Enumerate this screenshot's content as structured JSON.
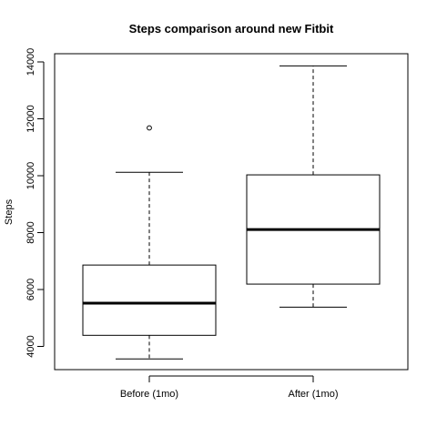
{
  "chart_data": {
    "type": "boxplot",
    "title": "Steps comparison around new Fitbit",
    "xlabel": "",
    "ylabel": "Steps",
    "ylim": [
      3200,
      14300
    ],
    "yticks": [
      "4000",
      "6000",
      "8000",
      "10000",
      "12000",
      "14000"
    ],
    "categories": [
      "Before (1mo)",
      "After (1mo)"
    ],
    "boxes": [
      {
        "category": "Before (1mo)",
        "min": 3560,
        "q1": 4390,
        "median": 5520,
        "q3": 6860,
        "max": 10120,
        "outliers": [
          11680
        ]
      },
      {
        "category": "After (1mo)",
        "min": 5380,
        "q1": 6190,
        "median": 8110,
        "q3": 10030,
        "max": 13860,
        "outliers": []
      }
    ],
    "grid": false,
    "legend": "none",
    "colors": {
      "box_fill": "#ffffff",
      "stroke": "#000000",
      "background": "#ffffff"
    }
  }
}
